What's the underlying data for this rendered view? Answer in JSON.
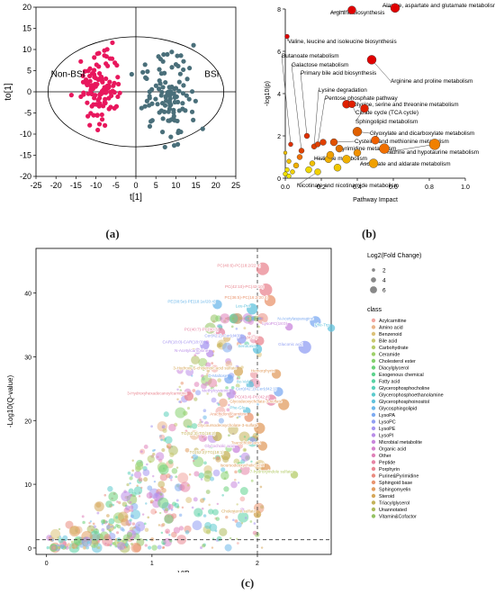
{
  "panels": [
    {
      "label": "(a)"
    },
    {
      "label": "(b)"
    },
    {
      "label": "(c)"
    }
  ],
  "chart_data": [
    {
      "type": "scatter",
      "panel": "a",
      "xlabel": "t[1]",
      "ylabel": "to[1]",
      "xlim": [
        -25,
        25
      ],
      "ylim": [
        -20,
        20
      ],
      "xticks": [
        -25,
        -20,
        -15,
        -10,
        -5,
        0,
        5,
        10,
        15,
        20,
        25
      ],
      "yticks": [
        -20,
        -15,
        -10,
        -5,
        0,
        5,
        10,
        15,
        20
      ],
      "annotations": [
        "Non-BSI",
        "BSI"
      ],
      "ellipse": {
        "cx": 0,
        "cy": 0,
        "rx": 22,
        "ry": 13
      },
      "series": [
        {
          "name": "Non-BSI",
          "color": "#e8175d",
          "center": [
            -9,
            0.5
          ],
          "spread": [
            2.6,
            4.5
          ],
          "n": 110
        },
        {
          "name": "BSI",
          "color": "#4a6f7a",
          "center": [
            8,
            -1
          ],
          "spread": [
            3.6,
            5.5
          ],
          "n": 110
        }
      ]
    },
    {
      "type": "scatter",
      "panel": "b",
      "xlabel": "Pathway Impact",
      "ylabel": "-log10(p)",
      "xlim": [
        0,
        1
      ],
      "ylim": [
        0,
        8
      ],
      "xticks": [
        0.0,
        0.2,
        0.4,
        0.6,
        0.8,
        1.0
      ],
      "yticks": [
        0,
        2,
        4,
        6,
        8
      ],
      "points": [
        {
          "label": "Alanine, aspartate and glutamate metabolism",
          "x": 0.61,
          "y": 8.05,
          "r": 5,
          "color": "#e00000"
        },
        {
          "label": "Arginine biosynthesis",
          "x": 0.37,
          "y": 7.95,
          "r": 4.5,
          "color": "#e00000"
        },
        {
          "label": "Valine, leucine and isoleucine biosynthesis",
          "x": 0.01,
          "y": 6.7,
          "r": 2.5,
          "color": "#e00000"
        },
        {
          "label": "Butanoate metabolism",
          "x": 0.03,
          "y": 1.6,
          "r": 2.5,
          "color": "#e03000"
        },
        {
          "label": "Galactose metabolism",
          "x": 0.09,
          "y": 1.3,
          "r": 3,
          "color": "#e04000"
        },
        {
          "label": "Primary bile acid biosynthesis",
          "x": 0.12,
          "y": 2.0,
          "r": 3,
          "color": "#e03000"
        },
        {
          "label": "Arginine and proline metabolism",
          "x": 0.48,
          "y": 5.6,
          "r": 5,
          "color": "#e00000"
        },
        {
          "label": "Lysine degradation",
          "x": 0.16,
          "y": 1.5,
          "r": 3,
          "color": "#e04000"
        },
        {
          "label": "Pentose phosphate pathway",
          "x": 0.18,
          "y": 1.6,
          "r": 3,
          "color": "#e04000"
        },
        {
          "label": "Glycine, serine and threonine metabolism",
          "x": 0.34,
          "y": 3.5,
          "r": 4.5,
          "color": "#e02000"
        },
        {
          "label": "Citrate cycle (TCA cycle)",
          "x": 0.37,
          "y": 3.5,
          "r": 4,
          "color": "#e02000"
        },
        {
          "label": "Sphingolipid metabolism",
          "x": 0.44,
          "y": 3.3,
          "r": 4.5,
          "color": "#e02000"
        },
        {
          "label": "Glyoxylate and dicarboxylate metabolism",
          "x": 0.4,
          "y": 2.2,
          "r": 5,
          "color": "#e06000"
        },
        {
          "label": "Cysteine and methionine metabolism",
          "x": 0.27,
          "y": 1.7,
          "r": 4,
          "color": "#e05000"
        },
        {
          "label": "Pyrimidine metabolism",
          "x": 0.3,
          "y": 1.4,
          "r": 4,
          "color": "#e07000"
        },
        {
          "label": "Taurine and hypotaurine metabolism",
          "x": 0.83,
          "y": 1.6,
          "r": 6,
          "color": "#f08000"
        },
        {
          "label": "Histidine metabolism",
          "x": 0.24,
          "y": 0.9,
          "r": 4,
          "color": "#f0b000"
        },
        {
          "label": "Ascorbate and aldarate metabolism",
          "x": 0.49,
          "y": 0.7,
          "r": 5,
          "color": "#f0a000"
        },
        {
          "label": "Nicotinate and nicotinamide metabolism",
          "x": 0.18,
          "y": 0.3,
          "r": 3.5,
          "color": "#f0d000"
        },
        {
          "label": "",
          "x": 0.55,
          "y": 1.4,
          "r": 5.5,
          "color": "#f07000"
        },
        {
          "label": "",
          "x": 0.5,
          "y": 1.8,
          "r": 4.5,
          "color": "#f06000"
        },
        {
          "label": "",
          "x": 0.34,
          "y": 0.9,
          "r": 4.5,
          "color": "#f0b000"
        },
        {
          "label": "",
          "x": 0.4,
          "y": 1.2,
          "r": 4,
          "color": "#f09000"
        },
        {
          "label": "",
          "x": 0.29,
          "y": 0.5,
          "r": 4,
          "color": "#f0c800"
        },
        {
          "label": "",
          "x": 0.21,
          "y": 1.7,
          "r": 3.5,
          "color": "#e04000"
        },
        {
          "label": "",
          "x": 0.08,
          "y": 1.0,
          "r": 3,
          "color": "#f07000"
        },
        {
          "label": "",
          "x": 0.06,
          "y": 0.6,
          "r": 3,
          "color": "#f0b000"
        },
        {
          "label": "",
          "x": 0.13,
          "y": 0.4,
          "r": 3.5,
          "color": "#f0d800"
        },
        {
          "label": "",
          "x": 0.02,
          "y": 0.8,
          "r": 2.5,
          "color": "#f0c000"
        },
        {
          "label": "",
          "x": 0.01,
          "y": 0.4,
          "r": 2.5,
          "color": "#f0e000"
        },
        {
          "label": "",
          "x": 0.0,
          "y": 0.2,
          "r": 2.5,
          "color": "#f0e000"
        },
        {
          "label": "",
          "x": 0.02,
          "y": 0.1,
          "r": 2.5,
          "color": "#f0e600"
        },
        {
          "label": "",
          "x": 0.04,
          "y": 0.3,
          "r": 2.5,
          "color": "#f0d000"
        },
        {
          "label": "",
          "x": 0.0,
          "y": 1.2,
          "r": 2,
          "color": "#f0c000"
        },
        {
          "label": "",
          "x": 0.25,
          "y": 1.1,
          "r": 4,
          "color": "#f0a000"
        },
        {
          "label": "",
          "x": 0.15,
          "y": 0.7,
          "r": 3,
          "color": "#f0c000"
        }
      ]
    },
    {
      "type": "scatter",
      "panel": "c",
      "xlabel": "VIP",
      "ylabel": "-Log10(Q-value)",
      "xlim": [
        -0.1,
        2.7
      ],
      "ylim": [
        -1,
        47
      ],
      "xticks": [
        0,
        1,
        2
      ],
      "yticks": [
        0,
        10,
        20,
        30,
        40
      ],
      "vline": 2,
      "hline": 1.3,
      "size_legend": {
        "title": "Log2(Fold Change)",
        "values": [
          2,
          4,
          6
        ]
      },
      "class_legend": {
        "title": "class",
        "items": [
          {
            "name": "Acylcarnitine",
            "color": "#f2a6a0"
          },
          {
            "name": "Amino acid",
            "color": "#e9b48a"
          },
          {
            "name": "Benzenoid",
            "color": "#dcc27a"
          },
          {
            "name": "Bile acid",
            "color": "#c9c86e"
          },
          {
            "name": "Carbohydrate",
            "color": "#b5cc6a"
          },
          {
            "name": "Ceramide",
            "color": "#9ed06a"
          },
          {
            "name": "Cholesterol ester",
            "color": "#86d16f"
          },
          {
            "name": "Diacylglycerol",
            "color": "#6cd27a"
          },
          {
            "name": "Exogenous chemical",
            "color": "#5ed38e"
          },
          {
            "name": "Fatty acid",
            "color": "#59d2a4"
          },
          {
            "name": "Glycerophosphocholine",
            "color": "#5ad0ba"
          },
          {
            "name": "Glycerophosphoethanolamine",
            "color": "#5ccbcd"
          },
          {
            "name": "Glycerophosphoinositol",
            "color": "#62c3dd"
          },
          {
            "name": "Glycosphingolipid",
            "color": "#6db8ea"
          },
          {
            "name": "LysoPA",
            "color": "#7eabf1"
          },
          {
            "name": "LysoPC",
            "color": "#919ff3"
          },
          {
            "name": "LysoPE",
            "color": "#a695f0"
          },
          {
            "name": "LysoPI",
            "color": "#b98de8"
          },
          {
            "name": "Microbial metabolite",
            "color": "#c987dc"
          },
          {
            "name": "Organic acid",
            "color": "#d683cc"
          },
          {
            "name": "Other",
            "color": "#e082b9"
          },
          {
            "name": "Peptide",
            "color": "#e684a5"
          },
          {
            "name": "Porphyrin",
            "color": "#e98791"
          },
          {
            "name": "Purine&Pyrimidine",
            "color": "#ea8c80"
          },
          {
            "name": "Sphingoid base",
            "color": "#e9956f"
          },
          {
            "name": "Sphingomyelin",
            "color": "#e29e61"
          },
          {
            "name": "Steroid",
            "color": "#d6a85a"
          },
          {
            "name": "Triacylglycerol",
            "color": "#c4b258"
          },
          {
            "name": "Unannotated",
            "color": "#aebb5c"
          },
          {
            "name": "Vitamin&Cofactor",
            "color": "#94c263"
          }
        ]
      },
      "labeled_points": [
        {
          "label": "PC(40:6)-PC(18:2/22:4)",
          "x": 2.05,
          "y": 43.8,
          "size": 6,
          "color": "#e98791"
        },
        {
          "label": "PC(42:10)-PC(42:10)",
          "x": 2.08,
          "y": 40.5,
          "size": 6,
          "color": "#e98791"
        },
        {
          "label": "PC(36:5)-PC(16:2/20:4)",
          "x": 2.12,
          "y": 38.8,
          "size": 5,
          "color": "#e9956f"
        },
        {
          "label": "PE(38:5e)-PE(18:1e/20:4)",
          "x": 1.62,
          "y": 38.2,
          "size": 4,
          "color": "#6db8ea"
        },
        {
          "label": "Leu-Pro",
          "x": 1.95,
          "y": 37.5,
          "size": 5,
          "color": "#62c3dd"
        },
        {
          "label": "N-Acetylasparagine",
          "x": 2.55,
          "y": 35.5,
          "size": 5,
          "color": "#7eabf1"
        },
        {
          "label": "LysoPC(18:0)",
          "x": 2.3,
          "y": 34.7,
          "size": 3,
          "color": "#c987dc"
        },
        {
          "label": "Phe-Trp",
          "x": 2.7,
          "y": 34.5,
          "size": 3,
          "color": "#62c3dd"
        },
        {
          "label": "PC(40:7)-PC(40:7)",
          "x": 1.65,
          "y": 33.8,
          "size": 4,
          "color": "#e684a5"
        },
        {
          "label": "Cer(d42:1)",
          "x": 2.02,
          "y": 32.5,
          "size": 4,
          "color": "#e98791"
        },
        {
          "label": "Cer(42:2)-Cer(d40)",
          "x": 1.85,
          "y": 32.8,
          "size": 4,
          "color": "#919ff3"
        },
        {
          "label": "Serotonin",
          "x": 2.0,
          "y": 31.2,
          "size": 4,
          "color": "#62c3dd"
        },
        {
          "label": "Gluconic acid",
          "x": 2.45,
          "y": 31.5,
          "size": 6,
          "color": "#919ff3"
        },
        {
          "label": "CAR(18:0)-CAR(18:0)",
          "x": 1.5,
          "y": 31.8,
          "size": 4,
          "color": "#a695f0"
        },
        {
          "label": "N-Acetylcarnosine",
          "x": 1.55,
          "y": 30.5,
          "size": 3,
          "color": "#b98de8"
        },
        {
          "label": "3-Hydroxy-5-cholenoic acid sulfate",
          "x": 1.82,
          "y": 27.7,
          "size": 4,
          "color": "#d6a85a"
        },
        {
          "label": "Hemorphyrin",
          "x": 2.18,
          "y": 27.3,
          "size": 4,
          "color": "#e29e61"
        },
        {
          "label": "D-Maltose",
          "x": 1.73,
          "y": 26.5,
          "size": 4,
          "color": "#7eabf1"
        },
        {
          "label": "Ile-Val",
          "x": 1.93,
          "y": 25.6,
          "size": 3,
          "color": "#62c3dd"
        },
        {
          "label": "Cer(d42:1)-Cer(d42:1)",
          "x": 2.2,
          "y": 24.5,
          "size": 4,
          "color": "#7eabf1"
        },
        {
          "label": "Methylcysteine",
          "x": 1.75,
          "y": 24.2,
          "size": 4,
          "color": "#b98de8"
        },
        {
          "label": "3-Hydroxyhexadecanoylcarnitine",
          "x": 1.35,
          "y": 23.8,
          "size": 4,
          "color": "#e98791"
        },
        {
          "label": "PC(43:4)-PC(42:4)",
          "x": 2.13,
          "y": 23.2,
          "size": 5,
          "color": "#e684a5"
        },
        {
          "label": "Glycodeoxycholate-3-sulfate",
          "x": 2.25,
          "y": 22.5,
          "size": 5,
          "color": "#e29e61"
        },
        {
          "label": "Phe-Glu",
          "x": 1.9,
          "y": 21.5,
          "size": 3,
          "color": "#62c3dd"
        },
        {
          "label": "Arachidonylcarnitine",
          "x": 1.92,
          "y": 20.5,
          "size": 4,
          "color": "#e9956f"
        },
        {
          "label": "Glycoursodeoxycholate-3-sulfate",
          "x": 2.02,
          "y": 18.8,
          "size": 5,
          "color": "#e29e61"
        },
        {
          "label": "TG(52:3)-TG(18:2)",
          "x": 1.62,
          "y": 17.5,
          "size": 4,
          "color": "#c4b258"
        },
        {
          "label": "Taurocholic acid",
          "x": 2.05,
          "y": 16.0,
          "size": 4,
          "color": "#e29e61"
        },
        {
          "label": "Glycocholic acid",
          "x": 1.8,
          "y": 15.5,
          "size": 3,
          "color": "#c987dc"
        },
        {
          "label": "TG(52:2)-TG(18:1)",
          "x": 1.7,
          "y": 14.5,
          "size": 4,
          "color": "#c4b258"
        },
        {
          "label": "Isoursodeoxycholic acid",
          "x": 2.08,
          "y": 12.5,
          "size": 4,
          "color": "#e29e61"
        },
        {
          "label": "7-hydroxyindole sulfate",
          "x": 2.35,
          "y": 11.5,
          "size": 3,
          "color": "#b5cc6a"
        },
        {
          "label": "Cholesterol sulfate",
          "x": 2.0,
          "y": 5.3,
          "size": 3,
          "color": "#d6a85a"
        }
      ]
    }
  ]
}
